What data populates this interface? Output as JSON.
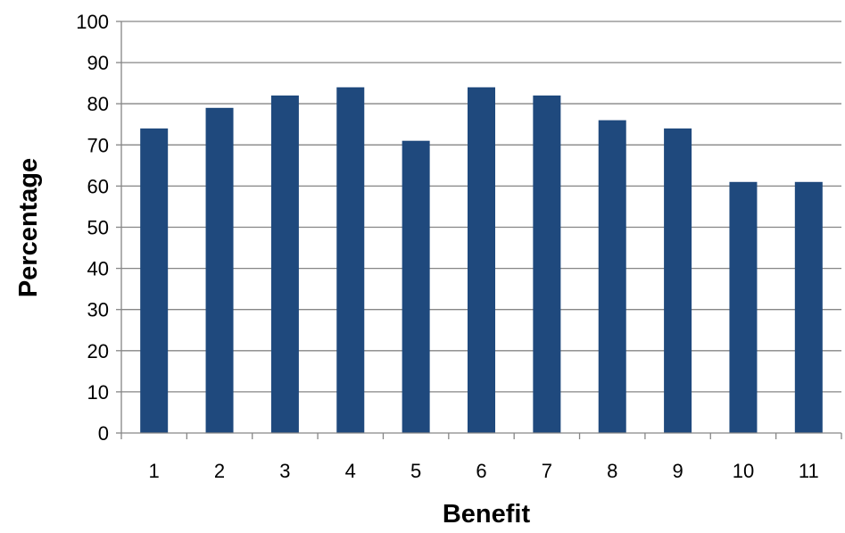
{
  "chart_data": {
    "type": "bar",
    "categories": [
      "1",
      "2",
      "3",
      "4",
      "5",
      "6",
      "7",
      "8",
      "9",
      "10",
      "11"
    ],
    "values": [
      74,
      79,
      82,
      84,
      71,
      84,
      82,
      76,
      74,
      61,
      61
    ],
    "xlabel": "Benefit",
    "ylabel": "Percentage",
    "ylim": [
      0,
      100
    ],
    "yticks": [
      "0",
      "10",
      "20",
      "30",
      "40",
      "50",
      "60",
      "70",
      "80",
      "90",
      "100"
    ],
    "grid": true,
    "legend": false,
    "bar_color": "#1F497D",
    "grid_color": "#868686",
    "axis_color": "#868686"
  }
}
